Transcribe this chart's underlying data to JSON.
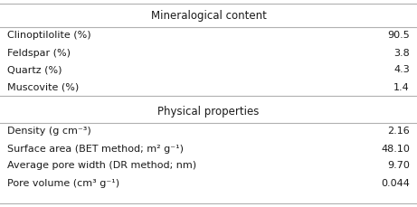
{
  "section1_title": "Mineralogical content",
  "section2_title": "Physical properties",
  "section1_rows": [
    [
      "Clinoptilolite (%)",
      "90.5"
    ],
    [
      "Feldspar (%)",
      "3.8"
    ],
    [
      "Quartz (%)",
      "4.3"
    ],
    [
      "Muscovite (%)",
      "1.4"
    ]
  ],
  "section2_rows": [
    [
      "Density (g cm⁻³)",
      "2.16"
    ],
    [
      "Surface area (BET method; m² g⁻¹)",
      "48.10"
    ],
    [
      "Average pore width (DR method; nm)",
      "9.70"
    ],
    [
      "Pore volume (cm³ g⁻¹)",
      "0.044"
    ]
  ],
  "bg_color": "#ffffff",
  "text_color": "#1a1a1a",
  "line_color": "#b0b0b0",
  "header_bg": "#ffffff",
  "font_size": 8.0,
  "header_font_size": 8.5,
  "fig_width": 4.61,
  "fig_height": 2.29,
  "dpi": 100
}
